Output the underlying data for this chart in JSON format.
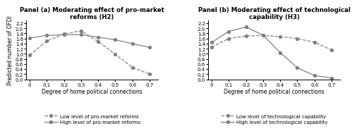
{
  "x": [
    0,
    0.1,
    0.2,
    0.3,
    0.4,
    0.5,
    0.6,
    0.7
  ],
  "panel_a": {
    "title": "Panel (a) Moderating effect of pro-market\nreforms (H2)",
    "low": [
      0.95,
      1.5,
      1.78,
      1.9,
      1.48,
      0.98,
      0.47,
      0.2
    ],
    "high": [
      1.62,
      1.72,
      1.75,
      1.75,
      1.65,
      1.55,
      1.4,
      1.25
    ],
    "legend_low": "Low level of pro-market reforms",
    "legend_high": "High level of pro-market reforms"
  },
  "panel_b": {
    "title": "Panel (b) Moderating effect of technological\ncapability (H3)",
    "low": [
      1.27,
      1.6,
      1.7,
      1.72,
      1.67,
      1.6,
      1.45,
      1.15
    ],
    "high": [
      1.45,
      1.88,
      2.05,
      1.73,
      1.05,
      0.45,
      0.15,
      0.05
    ],
    "legend_low": "Low level of technological capability",
    "legend_high": "High level of technological capability"
  },
  "xlabel": "Degree of home political connections",
  "ylabel": "Predicted number of OFDI",
  "xlim": [
    -0.02,
    0.75
  ],
  "ylim": [
    0.0,
    2.3
  ],
  "yticks": [
    0.0,
    0.2,
    0.4,
    0.6,
    0.8,
    1.0,
    1.2,
    1.4,
    1.6,
    1.8,
    2.0,
    2.2
  ],
  "xticks": [
    0,
    0.1,
    0.2,
    0.3,
    0.4,
    0.5,
    0.6,
    0.7
  ],
  "line_color": "#808080",
  "marker": "o",
  "marker_size": 2.8,
  "dashed_style": "--",
  "solid_style": "-"
}
